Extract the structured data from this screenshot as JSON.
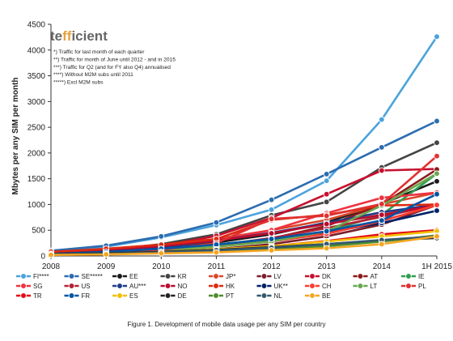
{
  "chart_data": {
    "type": "line",
    "logo": {
      "prefix": "te",
      "accent": "ff",
      "suffix": "icient"
    },
    "notes": [
      "*) Traffic for last month of each quarter",
      "**) Traffic for month of June until 2012 - and in 2015",
      "***) Traffic for Q2 (and for FY also Q4) annualised",
      "****) Without M2M subs until 2011",
      "*****) Excl M2M subs"
    ],
    "ylabel": "Mbytes per any SIM per month",
    "ylim": [
      0,
      4500
    ],
    "yticks": [
      0,
      500,
      1000,
      1500,
      2000,
      2500,
      3000,
      3500,
      4000,
      4500
    ],
    "categories": [
      "2008",
      "2009",
      "2010",
      "2011",
      "2012",
      "2013",
      "2014",
      "1H 2015"
    ],
    "grid": false,
    "legend_position": "bottom",
    "series": [
      {
        "name": "FI****",
        "color": "#4ba3dc",
        "values": [
          100,
          180,
          360,
          600,
          900,
          1460,
          2650,
          4260
        ]
      },
      {
        "name": "SE*****",
        "color": "#2b6cb0",
        "values": [
          100,
          200,
          380,
          650,
          1090,
          1590,
          2110,
          2620
        ]
      },
      {
        "name": "EE",
        "color": "#1a1a1a",
        "values": [
          60,
          110,
          180,
          260,
          420,
          650,
          1010,
          1450
        ]
      },
      {
        "name": "KR",
        "color": "#444444",
        "values": [
          60,
          110,
          230,
          420,
          790,
          1050,
          1720,
          2200
        ]
      },
      {
        "name": "JP*",
        "color": "#d9482b",
        "values": [
          70,
          130,
          200,
          330,
          500,
          700,
          1000,
          1230
        ]
      },
      {
        "name": "LV",
        "color": "#7a1f2b",
        "values": [
          30,
          50,
          80,
          130,
          230,
          380,
          610,
          990
        ]
      },
      {
        "name": "DK",
        "color": "#c8102e",
        "values": [
          40,
          90,
          190,
          390,
          740,
          1200,
          1660,
          1690
        ]
      },
      {
        "name": "AT",
        "color": "#8b1a1a",
        "values": [
          40,
          80,
          130,
          200,
          340,
          580,
          1000,
          1680
        ]
      },
      {
        "name": "IE",
        "color": "#2e9e4f",
        "values": [
          40,
          70,
          120,
          190,
          310,
          470,
          800,
          1600
        ]
      },
      {
        "name": "SG",
        "color": "#ef3340",
        "values": [
          60,
          110,
          190,
          310,
          500,
          830,
          1130,
          1230
        ]
      },
      {
        "name": "US",
        "color": "#b22234",
        "values": [
          30,
          60,
          110,
          200,
          350,
          540,
          760,
          1000
        ]
      },
      {
        "name": "AU***",
        "color": "#1f3c88",
        "values": [
          40,
          80,
          160,
          300,
          450,
          640,
          850,
          1000
        ]
      },
      {
        "name": "NO",
        "color": "#ba0c2f",
        "values": [
          60,
          110,
          190,
          300,
          440,
          620,
          800,
          990
        ]
      },
      {
        "name": "HK",
        "color": "#de2910",
        "values": [
          80,
          140,
          220,
          330,
          700,
          800,
          980,
          1000
        ]
      },
      {
        "name": "UK**",
        "color": "#012169",
        "values": [
          40,
          80,
          140,
          220,
          330,
          460,
          640,
          880
        ]
      },
      {
        "name": "CH",
        "color": "#ff3b30",
        "values": [
          40,
          70,
          120,
          180,
          280,
          430,
          680,
          990
        ]
      },
      {
        "name": "LT",
        "color": "#6aa84f",
        "values": [
          30,
          60,
          110,
          180,
          280,
          480,
          980,
          1600
        ]
      },
      {
        "name": "PL",
        "color": "#e03131",
        "values": [
          30,
          60,
          120,
          250,
          720,
          780,
          1010,
          1940
        ]
      },
      {
        "name": "TR",
        "color": "#e30a17",
        "values": [
          20,
          40,
          70,
          120,
          190,
          290,
          420,
          500
        ]
      },
      {
        "name": "FR",
        "color": "#0055a4",
        "values": [
          40,
          80,
          140,
          220,
          330,
          480,
          690,
          1200
        ]
      },
      {
        "name": "ES",
        "color": "#f1bf00",
        "values": [
          30,
          50,
          80,
          130,
          190,
          280,
          380,
          480
        ]
      },
      {
        "name": "DE",
        "color": "#222222",
        "values": [
          30,
          50,
          80,
          120,
          170,
          230,
          300,
          350
        ]
      },
      {
        "name": "PT",
        "color": "#4c8c2b",
        "values": [
          20,
          40,
          60,
          100,
          140,
          190,
          280,
          400
        ]
      },
      {
        "name": "NL",
        "color": "#35586b",
        "values": [
          20,
          40,
          70,
          110,
          160,
          230,
          310,
          380
        ]
      },
      {
        "name": "BE",
        "color": "#f5a623",
        "values": [
          20,
          30,
          50,
          70,
          110,
          150,
          230,
          380
        ]
      }
    ]
  },
  "caption": "Figure 1. Development of mobile data usage per any SIM per country"
}
